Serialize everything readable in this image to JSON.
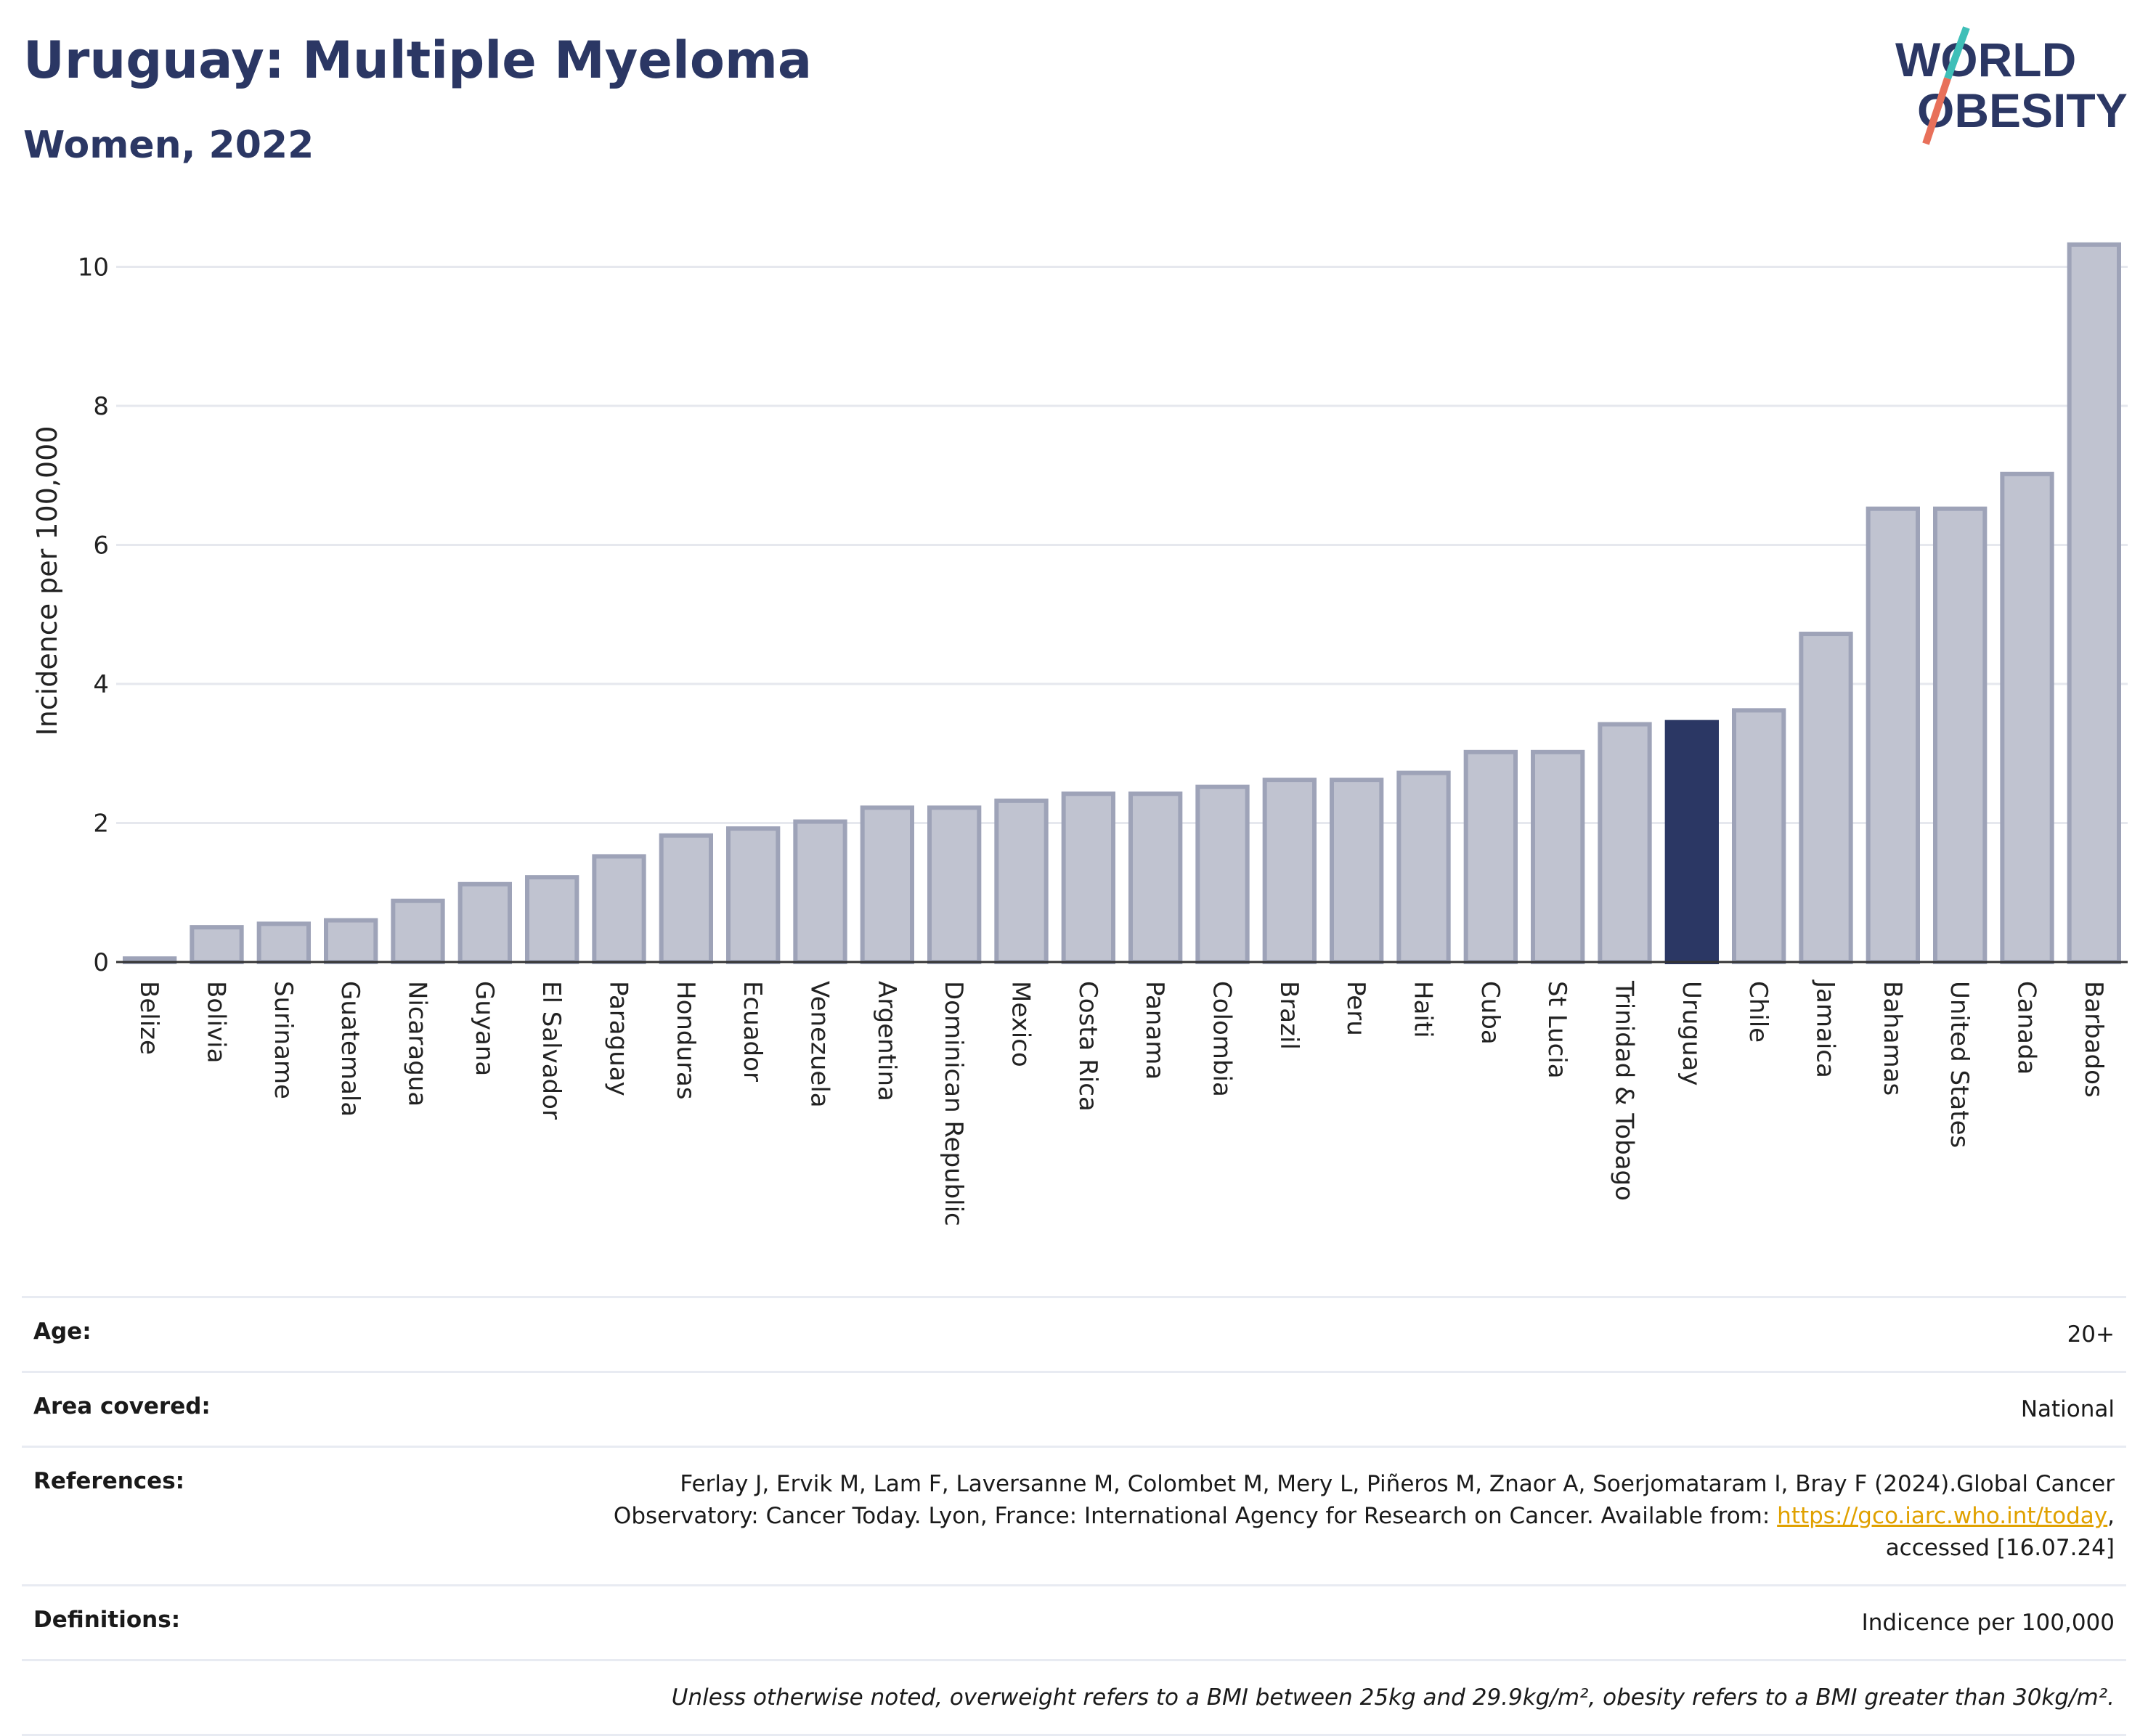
{
  "header": {
    "title": "Uruguay: Multiple Myeloma",
    "subtitle": "Women, 2022"
  },
  "logo": {
    "line1": "WORLD",
    "line2": "OBESITY",
    "icon": "world-obesity-logo"
  },
  "colors": {
    "highlight": "#2b3764",
    "bar": "#c0c3d0",
    "bar_edge": "#9ea3b8",
    "link": "#e0a100",
    "title": "#2b3764"
  },
  "chart_data": {
    "type": "bar",
    "ylabel": "Incidence per 100,000",
    "xlabel": "",
    "ylim": [
      0,
      10.6
    ],
    "yticks": [
      0,
      2,
      4,
      6,
      8,
      10
    ],
    "grid": true,
    "highlight": "Uruguay",
    "categories": [
      "Belize",
      "Bolivia",
      "Suriname",
      "Guatemala",
      "Nicaragua",
      "Guyana",
      "El Salvador",
      "Paraguay",
      "Honduras",
      "Ecuador",
      "Venezuela",
      "Argentina",
      "Dominican Republic",
      "Mexico",
      "Costa Rica",
      "Panama",
      "Colombia",
      "Brazil",
      "Peru",
      "Haiti",
      "Cuba",
      "St Lucia",
      "Trinidad & Tobago",
      "Uruguay",
      "Chile",
      "Jamaica",
      "Bahamas",
      "United States",
      "Canada",
      "Barbados"
    ],
    "values": [
      0.05,
      0.5,
      0.55,
      0.6,
      0.88,
      1.12,
      1.22,
      1.52,
      1.82,
      1.92,
      2.02,
      2.22,
      2.22,
      2.32,
      2.42,
      2.42,
      2.52,
      2.62,
      2.62,
      2.72,
      3.02,
      3.02,
      3.42,
      3.45,
      3.62,
      4.72,
      6.52,
      6.52,
      7.02,
      10.32
    ]
  },
  "info": {
    "age": {
      "key": "Age:",
      "value": "20+"
    },
    "area": {
      "key": "Area covered:",
      "value": "National"
    },
    "references": {
      "key": "References:",
      "line1": "Ferlay J, Ervik M, Lam F, Laversanne M, Colombet M, Mery L, Piñeros M, Znaor A, Soerjomataram I, Bray F (2024).Global Cancer",
      "line2_pre": "Observatory: Cancer Today. Lyon, France: International Agency for Research on Cancer. Available from: ",
      "link": "https://gco.iarc.who.int/today",
      "line2_post": ",",
      "line3": "accessed [16.07.24]"
    },
    "definitions": {
      "key": "Definitions:",
      "value": "Indicence per 100,000"
    },
    "note": "Unless otherwise noted, overweight refers to a BMI between 25kg and 29.9kg/m², obesity refers to a BMI greater than 30kg/m²."
  }
}
